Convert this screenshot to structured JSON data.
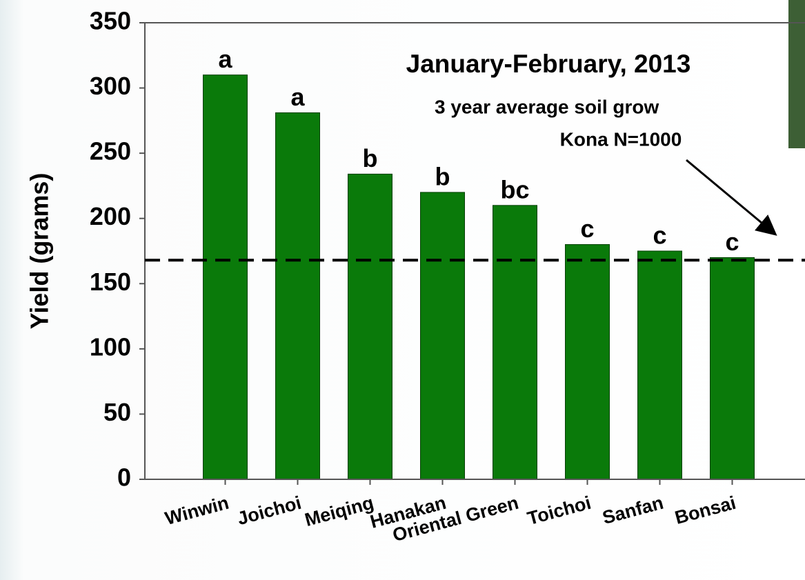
{
  "chart_data": {
    "type": "bar",
    "title": "January-February, 2013",
    "annotations": [
      "3 year average soil grow",
      "Kona N=1000"
    ],
    "y_label": "Yield (grams)",
    "categories": [
      "Winwin",
      "Joichoi",
      "Meiqing",
      "Hanakan",
      "Oriental Green",
      "Toichoi",
      "Sanfan",
      "Bonsai"
    ],
    "values": [
      310,
      281,
      234,
      220,
      210,
      180,
      175,
      170
    ],
    "group_letters": [
      "a",
      "a",
      "b",
      "b",
      "bc",
      "c",
      "c",
      "c"
    ],
    "color": "#0a7a0a",
    "reference_line": 168,
    "ylim": [
      0,
      350
    ],
    "yticks": [
      0,
      50,
      100,
      150,
      200,
      250,
      300,
      350
    ]
  }
}
